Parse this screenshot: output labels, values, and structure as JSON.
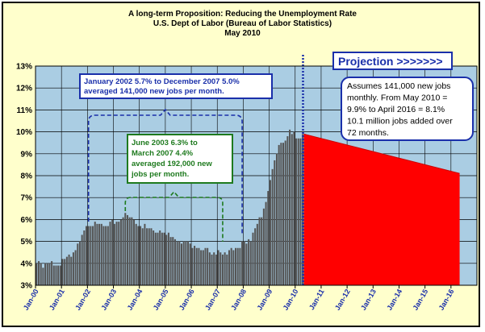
{
  "chart_data": {
    "type": "bar",
    "title_lines": [
      "A long-term Proposition: Reducing the Unemployment Rate",
      "U.S. Dept of Labor (Bureau of Labor Statistics)",
      "May 2010"
    ],
    "y_ticks": [
      "3%",
      "4%",
      "5%",
      "6%",
      "7%",
      "8%",
      "9%",
      "10%",
      "11%",
      "12%",
      "13%"
    ],
    "ylim": [
      3,
      13
    ],
    "x_ticks": [
      "Jan-00",
      "Jan-01",
      "Jan-02",
      "Jan-03",
      "Jan-04",
      "Jan-05",
      "Jan-06",
      "Jan-07",
      "Jan-08",
      "Jan-09",
      "Jan-10",
      "Jan-11",
      "Jan-12",
      "Jan-13",
      "Jan-14",
      "Jan-15",
      "Jan-16"
    ],
    "grid": true,
    "historical": {
      "start": "Jan-00",
      "end": "May-10",
      "values": [
        4.0,
        4.1,
        4.0,
        3.8,
        4.0,
        4.0,
        4.0,
        4.1,
        3.9,
        3.9,
        3.9,
        3.9,
        4.2,
        4.2,
        4.3,
        4.4,
        4.3,
        4.5,
        4.6,
        4.9,
        5.0,
        5.3,
        5.5,
        5.7,
        5.7,
        5.7,
        5.7,
        5.9,
        5.8,
        5.8,
        5.8,
        5.7,
        5.7,
        5.7,
        5.9,
        6.0,
        5.8,
        5.9,
        5.9,
        6.0,
        6.1,
        6.3,
        6.2,
        6.1,
        6.1,
        6.0,
        5.8,
        5.7,
        5.7,
        5.6,
        5.8,
        5.6,
        5.6,
        5.6,
        5.5,
        5.4,
        5.4,
        5.5,
        5.4,
        5.4,
        5.3,
        5.4,
        5.2,
        5.2,
        5.1,
        5.0,
        5.0,
        4.9,
        5.0,
        5.0,
        5.0,
        4.9,
        4.7,
        4.8,
        4.7,
        4.7,
        4.6,
        4.6,
        4.7,
        4.7,
        4.5,
        4.4,
        4.5,
        4.4,
        4.6,
        4.5,
        4.4,
        4.5,
        4.4,
        4.6,
        4.7,
        4.6,
        4.7,
        4.7,
        4.7,
        5.0,
        5.0,
        4.9,
        5.1,
        5.0,
        5.4,
        5.6,
        5.8,
        6.1,
        6.1,
        6.5,
        6.8,
        7.3,
        7.8,
        8.3,
        8.7,
        9.0,
        9.4,
        9.5,
        9.5,
        9.6,
        9.8,
        10.1,
        9.9,
        10.0,
        9.7,
        9.7,
        9.7,
        9.9,
        9.9
      ]
    },
    "projection": {
      "label": "Projection >>>>>>>",
      "start_value": 9.9,
      "end_value": 8.1,
      "start": "May-10",
      "end": "Apr-16",
      "color": "#ff0000"
    },
    "annotations": {
      "blue_box_lines": [
        "January 2002 5.7% to December 2007 5.0%",
        "averaged 141,000 new jobs per month."
      ],
      "green_box_lines": [
        "June 2003 6.3% to",
        "March 2007 4.4%",
        "averaged 192,000 new",
        "jobs per month."
      ],
      "assumption_lines": [
        "Assumes 141,000 new jobs",
        "monthly.  From May 2010 =",
        "9.9% to  April 2016 = 8.1%",
        "10.1 million jobs added over",
        "72 months."
      ]
    },
    "colors": {
      "plot_bg": "#aacde3",
      "bar": "#555555",
      "projection_fill": "#ff0000",
      "blue_box": "#1a2faa",
      "green_box": "#1e7a1e",
      "frame_bg": "#ffffcc"
    }
  }
}
